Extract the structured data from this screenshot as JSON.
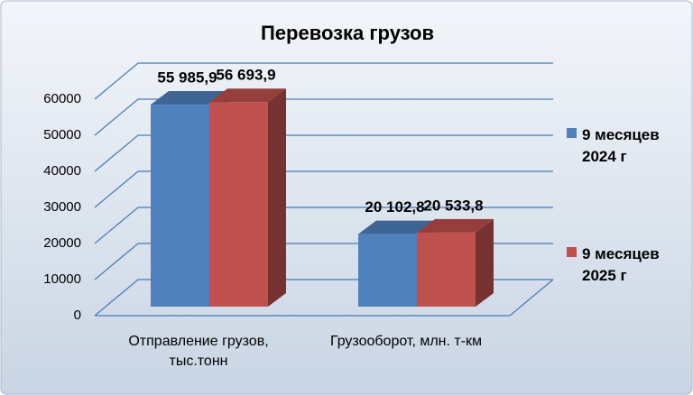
{
  "chart_data": {
    "type": "bar3d",
    "title": "Перевозка грузов",
    "categories": [
      "Отправление грузов, тыс.тонн",
      "Грузооборот, млн. т-км"
    ],
    "series": [
      {
        "name": "9 месяцев 2024 г",
        "color": "#4f81bd",
        "values": [
          55985.9,
          20102.8
        ],
        "value_labels": [
          "55 985,9",
          "20 102,8"
        ]
      },
      {
        "name": "9 месяцев 2025 г",
        "color": "#c0504d",
        "values": [
          56693.9,
          20533.8
        ],
        "value_labels": [
          "56 693,9",
          "20 533,8"
        ]
      }
    ],
    "ylim": [
      0,
      60000
    ],
    "yticks": [
      0,
      10000,
      20000,
      30000,
      40000,
      50000,
      60000
    ],
    "grid": true,
    "legend": "right"
  }
}
